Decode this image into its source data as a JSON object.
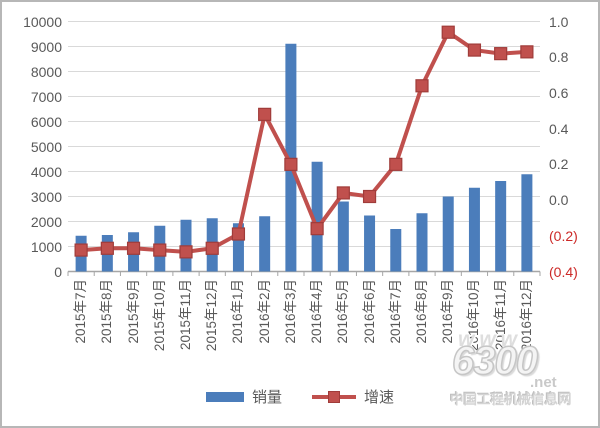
{
  "chart_data": {
    "type": "bar+line",
    "title": "",
    "xlabel": "",
    "ylabel_left": "",
    "ylabel_right": "",
    "grid": true,
    "legend_position": "bottom",
    "categories": [
      "2015年7月",
      "2015年8月",
      "2015年9月",
      "2015年10月",
      "2015年11月",
      "2015年12月",
      "2016年1月",
      "2016年2月",
      "2016年3月",
      "2016年4月",
      "2016年5月",
      "2016年6月",
      "2016年7月",
      "2016年8月",
      "2016年9月",
      "2016年10月",
      "2016年11月",
      "2016年12月"
    ],
    "series": [
      {
        "name": "销量",
        "type": "bar",
        "axis": "left",
        "values": [
          1430,
          1460,
          1570,
          1830,
          2070,
          2130,
          1930,
          2210,
          9110,
          4390,
          2800,
          2240,
          1700,
          2330,
          3000,
          3350,
          3620,
          3890
        ]
      },
      {
        "name": "增速",
        "type": "line",
        "axis": "right",
        "values": [
          -0.28,
          -0.27,
          -0.27,
          -0.28,
          -0.29,
          -0.27,
          -0.19,
          0.48,
          0.2,
          -0.16,
          0.04,
          0.02,
          0.2,
          0.64,
          0.94,
          0.84,
          0.82,
          0.83
        ]
      }
    ],
    "left_axis": {
      "min": 0,
      "max": 10000,
      "tick_values": [
        10000,
        9000,
        8000,
        7000,
        6000,
        5000,
        4000,
        3000,
        2000,
        1000,
        0
      ],
      "ticks": [
        "10000",
        "9000",
        "8000",
        "7000",
        "6000",
        "5000",
        "4000",
        "3000",
        "2000",
        "1000",
        "0"
      ]
    },
    "right_axis": {
      "min": -0.4,
      "max": 1.0,
      "tick_values": [
        1.0,
        0.8,
        0.6,
        0.4,
        0.2,
        0.0,
        -0.2,
        -0.4
      ],
      "ticks": [
        "1.0",
        "0.8",
        "0.6",
        "0.4",
        "0.2",
        "0.0",
        "(0.2)",
        "(0.4)"
      ]
    },
    "colors": {
      "bar": "#4b7dbb",
      "line": "#c0504d",
      "marker_border": "#a03c3a",
      "grid": "#d9d9d9",
      "axis": "#a6a6a6",
      "tick_label": "#595959",
      "negative_tick_label": "#cc2927"
    }
  },
  "legend": {
    "sales_label": "销量",
    "growth_label": "增速"
  },
  "watermark": {
    "www": "www",
    "big": "6300",
    "net": ".net",
    "site": "中国工程机械信息网"
  }
}
